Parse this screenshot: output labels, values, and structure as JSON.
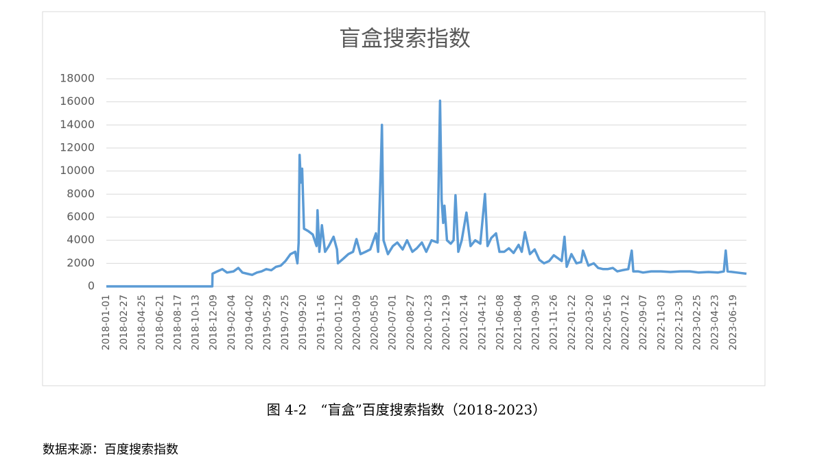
{
  "chart_data": {
    "type": "line",
    "title": "盲盒搜索指数",
    "color": "#5b9bd5",
    "x": [
      "2018-01-01",
      "2018-12-04",
      "2018-12-05",
      "2018-12-20",
      "2019-01-05",
      "2019-01-20",
      "2019-02-10",
      "2019-02-25",
      "2019-03-10",
      "2019-03-25",
      "2019-04-10",
      "2019-04-25",
      "2019-05-10",
      "2019-05-25",
      "2019-06-10",
      "2019-06-25",
      "2019-07-10",
      "2019-07-25",
      "2019-08-10",
      "2019-08-25",
      "2019-09-01",
      "2019-09-05",
      "2019-09-08",
      "2019-09-12",
      "2019-09-16",
      "2019-09-22",
      "2019-10-05",
      "2019-10-20",
      "2019-11-01",
      "2019-11-04",
      "2019-11-10",
      "2019-11-18",
      "2019-11-28",
      "2019-12-10",
      "2019-12-25",
      "2020-01-05",
      "2020-01-08",
      "2020-01-25",
      "2020-02-10",
      "2020-02-25",
      "2020-03-07",
      "2020-03-20",
      "2020-04-05",
      "2020-04-20",
      "2020-05-08",
      "2020-05-15",
      "2020-05-24",
      "2020-05-27",
      "2020-06-01",
      "2020-06-15",
      "2020-07-01",
      "2020-07-15",
      "2020-08-01",
      "2020-08-15",
      "2020-09-01",
      "2020-09-15",
      "2020-10-01",
      "2020-10-15",
      "2020-11-01",
      "2020-11-20",
      "2020-11-28",
      "2020-12-03",
      "2020-12-08",
      "2020-12-12",
      "2020-12-20",
      "2021-01-01",
      "2021-01-10",
      "2021-01-16",
      "2021-01-25",
      "2021-02-05",
      "2021-02-20",
      "2021-03-05",
      "2021-03-20",
      "2021-04-05",
      "2021-04-20",
      "2021-04-28",
      "2021-05-10",
      "2021-05-25",
      "2021-06-05",
      "2021-06-20",
      "2021-07-05",
      "2021-07-20",
      "2021-08-05",
      "2021-08-15",
      "2021-08-25",
      "2021-09-10",
      "2021-09-25",
      "2021-10-10",
      "2021-10-25",
      "2021-11-10",
      "2021-11-25",
      "2021-12-10",
      "2021-12-20",
      "2021-12-29",
      "2022-01-05",
      "2022-01-20",
      "2022-02-05",
      "2022-02-20",
      "2022-02-26",
      "2022-03-15",
      "2022-04-01",
      "2022-04-15",
      "2022-05-01",
      "2022-05-15",
      "2022-06-01",
      "2022-06-15",
      "2022-07-01",
      "2022-07-20",
      "2022-07-31",
      "2022-08-05",
      "2022-08-20",
      "2022-09-05",
      "2022-10-01",
      "2022-11-01",
      "2022-12-01",
      "2023-01-01",
      "2023-02-01",
      "2023-03-01",
      "2023-04-01",
      "2023-05-01",
      "2023-05-20",
      "2023-05-26",
      "2023-06-01",
      "2023-07-01",
      "2023-07-31"
    ],
    "values": [
      0,
      0,
      1100,
      1300,
      1500,
      1200,
      1300,
      1600,
      1200,
      1100,
      1000,
      1200,
      1300,
      1500,
      1400,
      1700,
      1800,
      2200,
      2800,
      3000,
      2000,
      3800,
      11400,
      9000,
      10200,
      5000,
      4800,
      4500,
      3500,
      6600,
      3000,
      5300,
      3000,
      3500,
      4300,
      3200,
      2000,
      2400,
      2800,
      3000,
      4100,
      2800,
      3000,
      3200,
      4600,
      3000,
      10800,
      14000,
      4000,
      2800,
      3500,
      3800,
      3200,
      4000,
      3000,
      3300,
      3800,
      3000,
      4000,
      3800,
      16100,
      7500,
      5500,
      7000,
      4000,
      3700,
      4000,
      7900,
      3000,
      4000,
      6400,
      3500,
      4000,
      3700,
      8000,
      3500,
      4200,
      4600,
      3000,
      3000,
      3300,
      2900,
      3600,
      3000,
      4700,
      2800,
      3200,
      2300,
      2000,
      2200,
      2700,
      2400,
      2200,
      4300,
      1700,
      2800,
      2000,
      2100,
      3100,
      1800,
      2000,
      1600,
      1500,
      1500,
      1600,
      1300,
      1400,
      1500,
      3100,
      1300,
      1300,
      1200,
      1300,
      1300,
      1250,
      1300,
      1300,
      1200,
      1250,
      1200,
      1300,
      3100,
      1300,
      1200,
      1100
    ],
    "xlim": [
      "2018-01-01",
      "2023-07-31"
    ],
    "xticks": [
      "2018-01-01",
      "2018-02-27",
      "2018-04-25",
      "2018-06-21",
      "2018-08-17",
      "2018-10-13",
      "2018-12-09",
      "2019-02-04",
      "2019-04-02",
      "2019-05-29",
      "2019-07-25",
      "2019-09-20",
      "2019-11-16",
      "2020-01-12",
      "2020-03-09",
      "2020-05-05",
      "2020-07-01",
      "2020-08-27",
      "2020-10-23",
      "2020-12-19",
      "2021-02-14",
      "2021-04-12",
      "2021-06-08",
      "2021-08-04",
      "2021-09-30",
      "2021-11-26",
      "2022-01-22",
      "2022-03-20",
      "2022-05-16",
      "2022-07-12",
      "2022-09-07",
      "2022-11-03",
      "2022-12-30",
      "2023-02-25",
      "2023-04-23",
      "2023-06-19"
    ],
    "ylim": [
      0,
      18000
    ],
    "yticks": [
      0,
      2000,
      4000,
      6000,
      8000,
      10000,
      12000,
      14000,
      16000,
      18000
    ],
    "grid": true
  },
  "caption": "图 4-2　“盲盒”百度搜索指数（2018-2023）",
  "source": "数据来源：百度搜索指数"
}
